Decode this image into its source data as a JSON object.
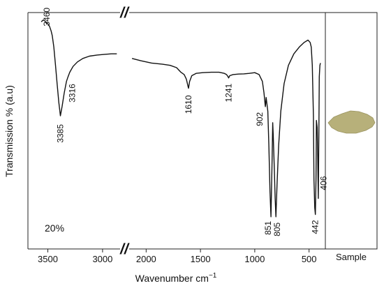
{
  "chart_data": {
    "type": "line",
    "xlabel": "Wavenumber cm",
    "xlabel_superscript": "−1",
    "ylabel": "Transmission % (a.u)",
    "axis_break": "//",
    "x_reversed": true,
    "segments": [
      {
        "xlim": [
          3650,
          2840
        ],
        "ticks": [
          3500,
          3000
        ]
      },
      {
        "xlim": [
          2150,
          350
        ],
        "ticks": [
          2000,
          1500,
          1000,
          500
        ]
      }
    ],
    "scale_annotation": "20%",
    "side_panel": {
      "label": "Sample",
      "swatch_color": "#b7b07a"
    },
    "series": [
      {
        "x": [
          3560,
          3540,
          3510,
          3485,
          3470,
          3460,
          3445,
          3430,
          3415,
          3400,
          3385,
          3370,
          3350,
          3330,
          3316,
          3300,
          3270,
          3230,
          3180,
          3120,
          3050,
          2980,
          2920,
          2870
        ],
        "y": [
          99,
          99.8,
          98.6,
          97,
          95,
          93,
          88,
          80,
          72,
          64,
          58,
          62,
          68,
          73,
          75,
          77,
          79.5,
          81.5,
          83,
          84,
          84.5,
          84.8,
          85,
          85
        ]
      },
      {
        "x": [
          2130,
          2050,
          1950,
          1850,
          1780,
          1720,
          1680,
          1650,
          1630,
          1615,
          1610,
          1600,
          1580,
          1540,
          1480,
          1400,
          1330,
          1280,
          1260,
          1245,
          1241,
          1230,
          1200,
          1150,
          1100,
          1050,
          1000,
          960,
          930,
          915,
          905,
          902,
          895,
          880,
          870,
          860,
          851,
          842,
          835,
          830,
          820,
          812,
          805,
          795,
          780,
          760,
          730,
          690,
          640,
          590,
          545,
          510,
          490,
          480,
          470,
          460,
          455,
          448,
          442,
          436,
          432,
          425,
          420,
          415,
          410,
          406,
          400,
          395
        ],
        "y": [
          83,
          82,
          81,
          80.5,
          80,
          79,
          77,
          76,
          74,
          71,
          70,
          73,
          75.5,
          76.5,
          76.8,
          77,
          77,
          76.5,
          76,
          75,
          74.5,
          75.5,
          76,
          76.2,
          76.3,
          76.5,
          76.8,
          76,
          73,
          68,
          63,
          62,
          66,
          60,
          45,
          25,
          14,
          35,
          55,
          50,
          35,
          22,
          14,
          28,
          45,
          60,
          72,
          80,
          85,
          88,
          90,
          91,
          90,
          88,
          80,
          58,
          30,
          18,
          15,
          30,
          56,
          53,
          40,
          22,
          50,
          75,
          80,
          81
        ]
      }
    ],
    "annotations": [
      {
        "text": "3460",
        "x": 3460,
        "y": 93
      },
      {
        "text": "3385",
        "x": 3385,
        "y": 58
      },
      {
        "text": "3316",
        "x": 3316,
        "y": 75
      },
      {
        "text": "1610",
        "x": 1610,
        "y": 70
      },
      {
        "text": "1241",
        "x": 1241,
        "y": 74.5
      },
      {
        "text": "902",
        "x": 902,
        "y": 62
      },
      {
        "text": "851",
        "x": 851,
        "y": 14
      },
      {
        "text": "805",
        "x": 805,
        "y": 14
      },
      {
        "text": "442",
        "x": 442,
        "y": 15
      },
      {
        "text": "406",
        "x": 406,
        "y": 22
      }
    ]
  }
}
